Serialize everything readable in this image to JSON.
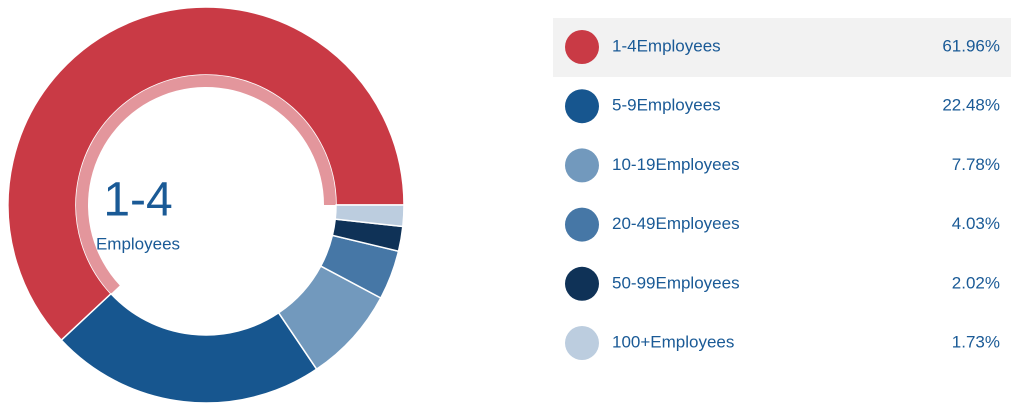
{
  "chart_data": {
    "type": "pie",
    "center_title": "1-4",
    "center_subtitle": "Employees",
    "categories": [
      "1-4Employees",
      "5-9Employees",
      "10-19Employees",
      "20-49Employees",
      "50-99Employees",
      "100+Employees"
    ],
    "values": [
      61.96,
      22.48,
      7.78,
      4.03,
      2.02,
      1.73
    ],
    "value_labels": [
      "61.96%",
      "22.48%",
      "7.78%",
      "4.03%",
      "2.02%",
      "1.73%"
    ],
    "colors": [
      "#c93a45",
      "#17568f",
      "#7299bd",
      "#4677a6",
      "#0f3257",
      "#bccddf"
    ],
    "highlight_color": "#e3969c"
  }
}
